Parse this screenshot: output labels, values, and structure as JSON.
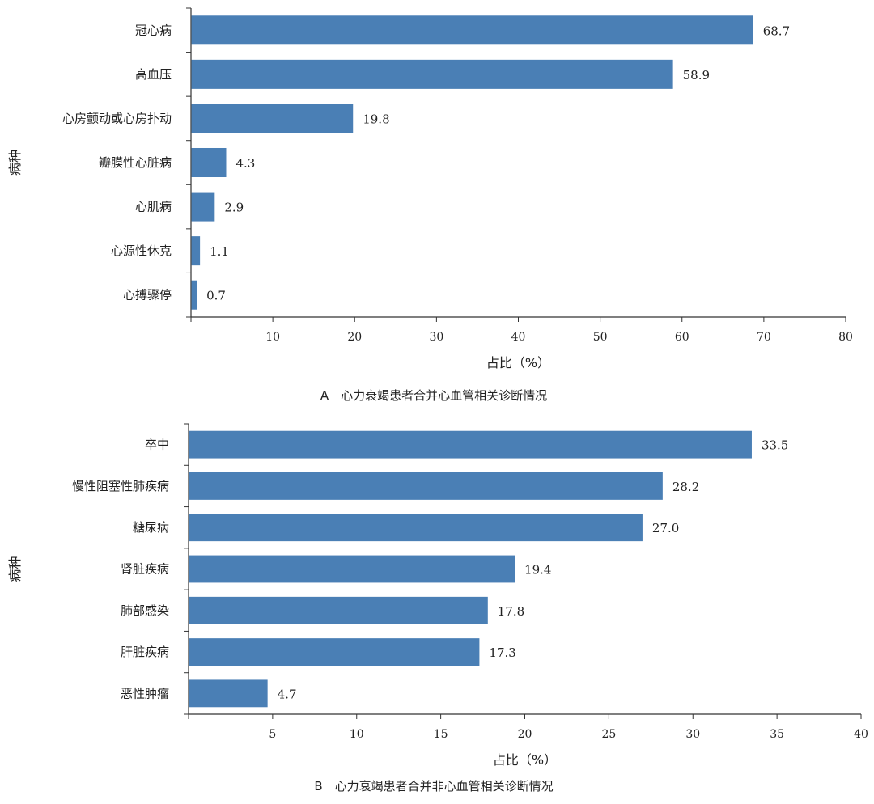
{
  "chart_data": [
    {
      "type": "bar",
      "orientation": "horizontal",
      "caption": "A　心力衰竭患者合并心血管相关诊断情况",
      "xlabel": "占比（%）",
      "ylabel": "病种",
      "xlim": [
        0,
        80
      ],
      "xticks": [
        10,
        20,
        30,
        40,
        50,
        60,
        70,
        80
      ],
      "categories": [
        "冠心病",
        "高血压",
        "心房颤动或心房扑动",
        "瓣膜性心脏病",
        "心肌病",
        "心源性休克",
        "心搏骤停"
      ],
      "values": [
        68.7,
        58.9,
        19.8,
        4.3,
        2.9,
        1.1,
        0.7
      ],
      "value_labels": [
        "68.7",
        "58.9",
        "19.8",
        "4.3",
        "2.9",
        "1.1",
        "0.7"
      ],
      "color": "#4a7fb5",
      "grid": false
    },
    {
      "type": "bar",
      "orientation": "horizontal",
      "caption": "B　心力衰竭患者合并非心血管相关诊断情况",
      "xlabel": "占比（%）",
      "ylabel": "病种",
      "xlim": [
        0,
        40
      ],
      "xticks": [
        5,
        10,
        15,
        20,
        25,
        30,
        35,
        40
      ],
      "categories": [
        "卒中",
        "慢性阻塞性肺疾病",
        "糖尿病",
        "肾脏疾病",
        "肺部感染",
        "肝脏疾病",
        "恶性肿瘤"
      ],
      "values": [
        33.5,
        28.2,
        27.0,
        19.4,
        17.8,
        17.3,
        4.7
      ],
      "value_labels": [
        "33.5",
        "28.2",
        "27.0",
        "19.4",
        "17.8",
        "17.3",
        "4.7"
      ],
      "color": "#4a7fb5",
      "grid": false
    }
  ]
}
